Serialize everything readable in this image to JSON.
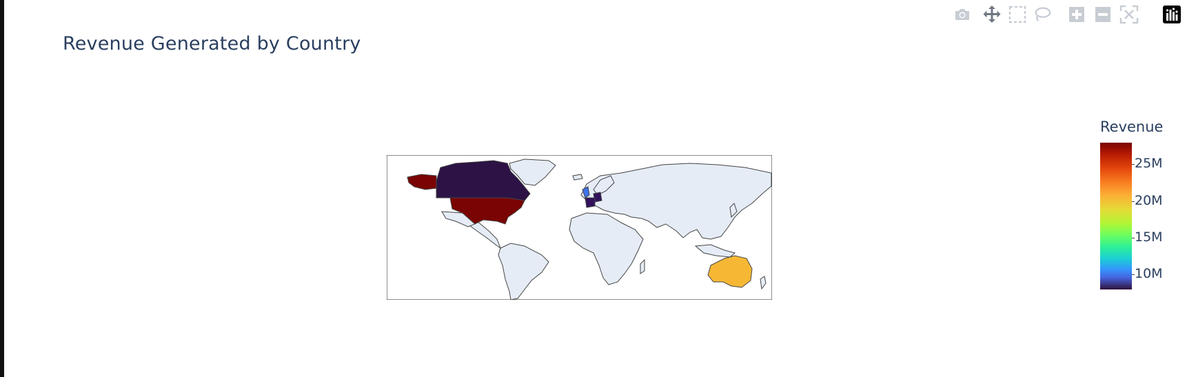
{
  "title": "Revenue Generated by Country",
  "modebar": {
    "buttons": [
      {
        "name": "camera-icon"
      },
      {
        "name": "pan-icon"
      },
      {
        "name": "box-select-icon"
      },
      {
        "name": "lasso-select-icon"
      },
      {
        "name": "zoom-in-icon"
      },
      {
        "name": "zoom-out-icon"
      },
      {
        "name": "autoscale-icon"
      },
      {
        "name": "plotly-logo-icon"
      }
    ]
  },
  "colorbar": {
    "title": "Revenue",
    "ticks": [
      {
        "label": "25M",
        "value": 25000000
      },
      {
        "label": "20M",
        "value": 20000000
      },
      {
        "label": "15M",
        "value": 15000000
      },
      {
        "label": "10M",
        "value": 10000000
      }
    ],
    "range": [
      8000000,
      28000000
    ],
    "colorscale": "Turbo"
  },
  "chart_data": {
    "type": "choropleth",
    "title": "Revenue Generated by Country",
    "colorbar_title": "Revenue",
    "projection": "equirectangular",
    "zmin": 8000000,
    "zmax": 28000000,
    "countries": [
      {
        "name": "United States",
        "value": 28000000,
        "color": "#7a0403"
      },
      {
        "name": "Australia",
        "value": 21000000,
        "color": "#f6b834"
      },
      {
        "name": "United Kingdom",
        "value": 11000000,
        "color": "#3e72ea"
      },
      {
        "name": "Germany",
        "value": 8500000,
        "color": "#31115c"
      },
      {
        "name": "France",
        "value": 8500000,
        "color": "#31115c"
      },
      {
        "name": "Canada",
        "value": 8000000,
        "color": "#2c1245"
      }
    ],
    "land_color": "#e5ecf6",
    "border_color": "#444444"
  }
}
